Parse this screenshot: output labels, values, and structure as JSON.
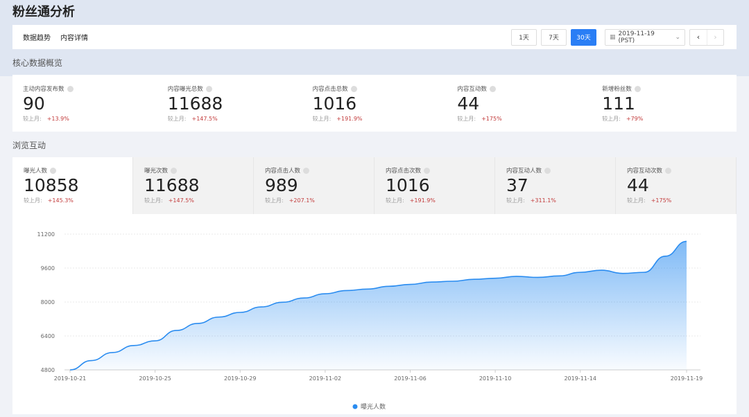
{
  "title": "粉丝通分析",
  "nav": [
    "数据趋势",
    "内容详情"
  ],
  "range_buttons": [
    {
      "label": "1天",
      "active": false
    },
    {
      "label": "7天",
      "active": false
    },
    {
      "label": "30天",
      "active": true
    }
  ],
  "date": "2019-11-19 (PST)",
  "sections": {
    "core": "核心数据概览",
    "browse": "浏览互动"
  },
  "compare_label": "较上月:",
  "core_kpis": [
    {
      "label": "主动内容发布数",
      "value": "90",
      "change": "+13.9%"
    },
    {
      "label": "内容曝光总数",
      "value": "11688",
      "change": "+147.5%"
    },
    {
      "label": "内容点击总数",
      "value": "1016",
      "change": "+191.9%"
    },
    {
      "label": "内容互动数",
      "value": "44",
      "change": "+175%"
    },
    {
      "label": "新增粉丝数",
      "value": "111",
      "change": "+79%"
    }
  ],
  "browse_tabs": [
    {
      "label": "曝光人数",
      "value": "10858",
      "change": "+145.3%",
      "active": true
    },
    {
      "label": "曝光次数",
      "value": "11688",
      "change": "+147.5%"
    },
    {
      "label": "内容点击人数",
      "value": "989",
      "change": "+207.1%"
    },
    {
      "label": "内容点击次数",
      "value": "1016",
      "change": "+191.9%"
    },
    {
      "label": "内容互动人数",
      "value": "37",
      "change": "+311.1%"
    },
    {
      "label": "内容互动次数",
      "value": "44",
      "change": "+175%"
    }
  ],
  "chart_data": {
    "type": "area",
    "ylim": [
      4800,
      11200
    ],
    "yticks": [
      "4800",
      "6400",
      "8000",
      "9600",
      "11200"
    ],
    "xticks": [
      "2019-10-21",
      "2019-10-25",
      "2019-10-29",
      "2019-11-02",
      "2019-11-06",
      "2019-11-10",
      "2019-11-14",
      "2019-11-19"
    ],
    "x_start": "2019-10-21",
    "x_end": "2019-11-19",
    "grid": true,
    "legend_position": "bottom",
    "series": [
      {
        "name": "曝光人数",
        "color": "#2a8cf0",
        "values": [
          4800,
          5240,
          5620,
          5950,
          6170,
          6660,
          6990,
          7290,
          7510,
          7770,
          7990,
          8190,
          8390,
          8540,
          8610,
          8740,
          8830,
          8940,
          8980,
          9070,
          9120,
          9210,
          9160,
          9230,
          9400,
          9500,
          9350,
          9400,
          10160,
          10858
        ]
      }
    ]
  }
}
